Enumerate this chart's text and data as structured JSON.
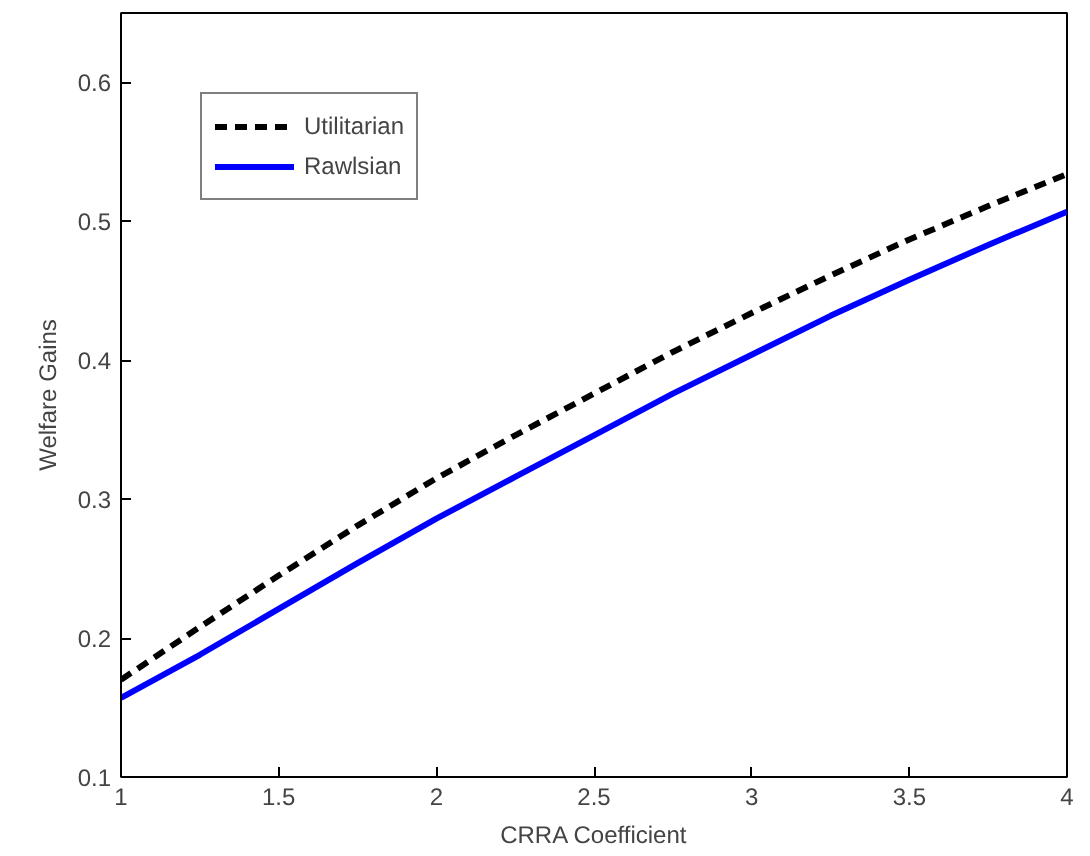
{
  "chart_data": {
    "type": "line",
    "xlabel": "CRRA Coefficient",
    "ylabel": "Welfare Gains",
    "x": [
      1,
      1.25,
      1.5,
      1.75,
      2,
      2.25,
      2.5,
      2.75,
      3,
      3.25,
      3.5,
      3.75,
      4
    ],
    "series": [
      {
        "name": "Utilitarian",
        "color": "#000000",
        "line_style": "dashed",
        "values": [
          0.17,
          0.208,
          0.245,
          0.281,
          0.315,
          0.346,
          0.376,
          0.406,
          0.434,
          0.461,
          0.487,
          0.511,
          0.534
        ]
      },
      {
        "name": "Rawlsian",
        "color": "#0000ff",
        "line_style": "solid",
        "values": [
          0.157,
          0.188,
          0.221,
          0.254,
          0.286,
          0.316,
          0.346,
          0.376,
          0.404,
          0.432,
          0.458,
          0.483,
          0.507
        ]
      }
    ],
    "xlim": [
      1,
      4
    ],
    "ylim": [
      0.1,
      0.65
    ],
    "xticks": [
      1,
      1.5,
      2,
      2.5,
      3,
      3.5,
      4
    ],
    "yticks": [
      0.1,
      0.2,
      0.3,
      0.4,
      0.5,
      0.6
    ],
    "grid": false,
    "legend": "top left",
    "marker": "none"
  }
}
